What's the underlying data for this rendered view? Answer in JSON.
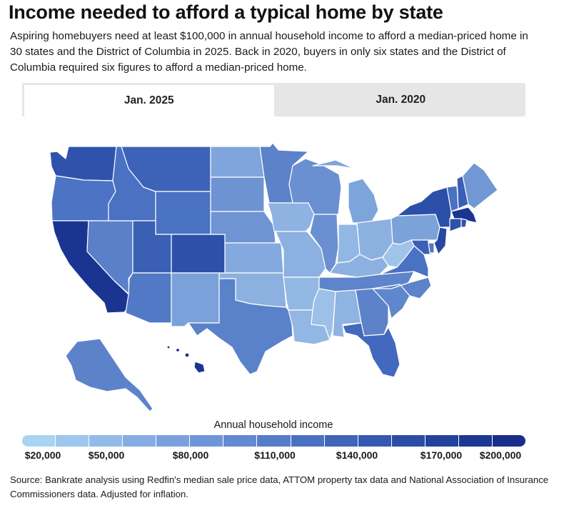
{
  "title": "Income needed to afford a typical home by state",
  "subtitle": "Aspiring homebuyers need at least $100,000 in annual household income to afford a median-priced home in 30 states and the District of Columbia in 2025. Back in 2020, buyers in only six states and the District of Columbia required six figures to afford a median-priced home.",
  "tabs": [
    {
      "label": "Jan. 2025",
      "active": true
    },
    {
      "label": "Jan. 2020",
      "active": false
    }
  ],
  "legend": {
    "title": "Annual household income",
    "ticks": [
      "$20,000",
      "$50,000",
      "$80,000",
      "$110,000",
      "$140,000",
      "$170,000",
      "$200,000"
    ],
    "colors": [
      "#a9d4f1",
      "#9ec7ee",
      "#93bbe9",
      "#86ade3",
      "#7aa1de",
      "#6e95d8",
      "#6289d1",
      "#567dc9",
      "#4a71c1",
      "#3f64b8",
      "#3459af",
      "#2b4da6",
      "#23429d",
      "#1c3893",
      "#182f89"
    ]
  },
  "source": "Source: Bankrate analysis using Redfin's median sale price data, ATTOM property tax data and National Association of Insurance Commissioners data. Adjusted for inflation.",
  "states": {
    "WA": "#2f53ac",
    "OR": "#4c73c4",
    "CA": "#1a3591",
    "NV": "#5a80c9",
    "ID": "#4a71c2",
    "MT": "#3d63b9",
    "WY": "#4a72c2",
    "UT": "#3a5fb5",
    "CO": "#2d50a9",
    "AZ": "#5279c6",
    "NM": "#7ba1da",
    "ND": "#7fa5dc",
    "SD": "#6d93d3",
    "NE": "#6e94d3",
    "KS": "#83a9de",
    "OK": "#8cb1e1",
    "TX": "#5a82ca",
    "MN": "#5c82ca",
    "IA": "#8eb2e2",
    "MO": "#8bb0e1",
    "AR": "#94b8e4",
    "LA": "#93b7e4",
    "WI": "#6a90d1",
    "IL": "#6a90d1",
    "MI": "#7ea4dc",
    "IN": "#93b7e4",
    "OH": "#8cb1e1",
    "KY": "#8cb1e1",
    "TN": "#5e84cb",
    "MS": "#9dc0e8",
    "AL": "#8fb3e2",
    "GA": "#5c82ca",
    "FL": "#4269bd",
    "SC": "#6087cd",
    "NC": "#5c82ca",
    "VA": "#4a72c2",
    "WV": "#a0c3ea",
    "PA": "#7ca2da",
    "NY": "#2c50a8",
    "VT": "#4a71c2",
    "NH": "#3a60b6",
    "ME": "#7197d5",
    "MA": "#1a3591",
    "CT": "#2e51aa",
    "RI": "#2e51aa",
    "NJ": "#2648a2",
    "DE": "#5279c6",
    "MD": "#3b61b7",
    "AK": "#5c82ca",
    "HI": "#1b3592"
  }
}
